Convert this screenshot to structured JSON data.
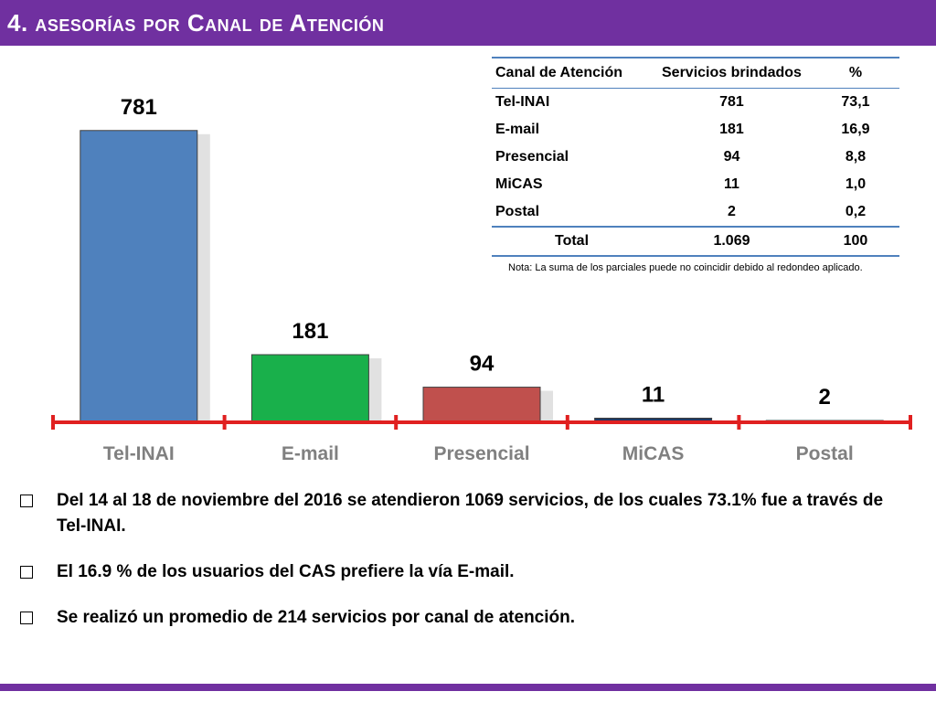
{
  "slide": {
    "title": "4. asesorías por Canal de Atención",
    "colors": {
      "bar": "#7030a0",
      "axis": "#e02020"
    }
  },
  "chart_data": {
    "type": "bar",
    "categories": [
      "Tel-INAI",
      "E-mail",
      "Presencial",
      "MiCAS",
      "Postal"
    ],
    "values": [
      781,
      181,
      94,
      11,
      2
    ],
    "data_labels": [
      "781",
      "181",
      "94",
      "11",
      "2"
    ],
    "title": "",
    "xlabel": "",
    "ylabel": "",
    "ylim": [
      0,
      800
    ],
    "grid": false,
    "bar_colors": [
      "#4f81bd",
      "#19b04b",
      "#c0504d",
      "#1f3864",
      "#1f3864"
    ]
  },
  "table": {
    "headers": [
      "Canal de Atención",
      "Servicios brindados",
      "%"
    ],
    "rows": [
      [
        "Tel-INAI",
        "781",
        "73,1"
      ],
      [
        "E-mail",
        "181",
        "16,9"
      ],
      [
        "Presencial",
        "94",
        "8,8"
      ],
      [
        "MiCAS",
        "11",
        "1,0"
      ],
      [
        "Postal",
        "2",
        "0,2"
      ]
    ],
    "total": [
      "Total",
      "1.069",
      "100"
    ]
  },
  "note": "Nota: La suma de los parciales puede no coincidir debido al redondeo aplicado.",
  "bullets": [
    "Del 14 al 18 de noviembre del 2016 se atendieron 1069 servicios, de los cuales 73.1% fue a través de Tel-INAI.",
    "El 16.9 % de los usuarios del CAS prefiere la vía E-mail.",
    "Se realizó un promedio de 214 servicios por canal de atención."
  ]
}
